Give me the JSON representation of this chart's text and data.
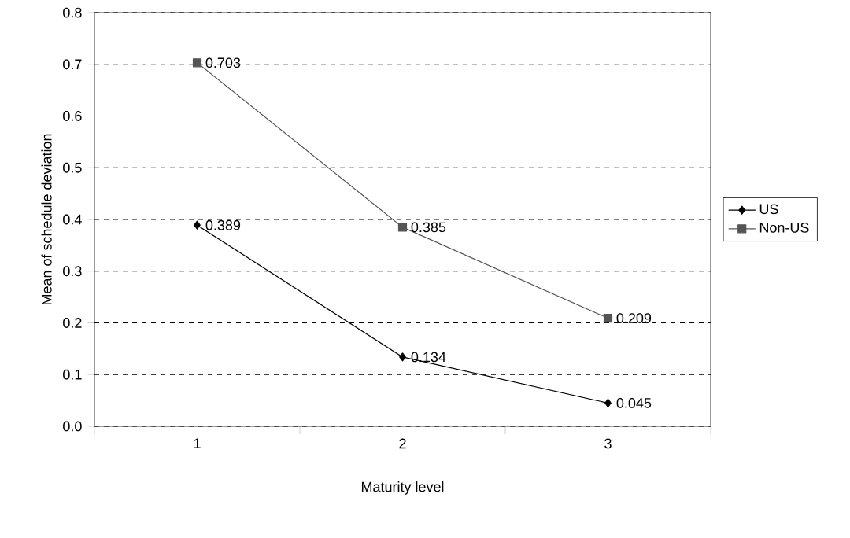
{
  "chart_data": {
    "type": "line",
    "xlabel": "Maturity level",
    "ylabel": "Mean of schedule deviation",
    "categories": [
      "1",
      "2",
      "3"
    ],
    "series": [
      {
        "name": "US",
        "color": "#000000",
        "marker": "diamond",
        "values": [
          0.389,
          0.134,
          0.045
        ]
      },
      {
        "name": "Non-US",
        "color": "#555555",
        "marker": "square",
        "values": [
          0.703,
          0.385,
          0.209
        ]
      }
    ],
    "ylim": [
      0,
      0.8
    ],
    "yticks": [
      {
        "value": 0,
        "label": "0.0"
      },
      {
        "value": 0.1,
        "label": "0.1"
      },
      {
        "value": 0.2,
        "label": "0.2"
      },
      {
        "value": 0.3,
        "label": "0.3"
      },
      {
        "value": 0.4,
        "label": "0.4"
      },
      {
        "value": 0.5,
        "label": "0.5"
      },
      {
        "value": 0.6,
        "label": "0.6"
      },
      {
        "value": 0.7,
        "label": "0.7"
      },
      {
        "value": 0.8,
        "label": "0.8"
      }
    ],
    "grid": "y",
    "legend": "right",
    "data_labels": true,
    "line_style": "solid"
  }
}
